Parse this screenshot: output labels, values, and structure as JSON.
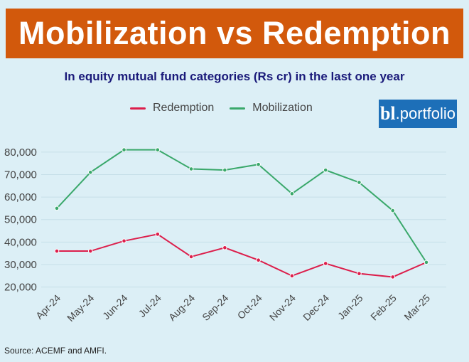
{
  "banner": {
    "title": "Mobilization vs Redemption"
  },
  "subtitle": "In equity mutual fund categories (Rs cr) in the last one year",
  "logo": {
    "bold": "bl",
    "dot": ".",
    "light": "portfolio"
  },
  "source": "Source: ACEMF and AMFI.",
  "colors": {
    "banner": "#d2590c",
    "redemption": "#dc1e4b",
    "mobilization": "#3aa86b",
    "subtitle": "#1a1a7a"
  },
  "chart_data": {
    "type": "line",
    "categories": [
      "Apr-24",
      "May-24",
      "Jun-24",
      "Jul-24",
      "Aug-24",
      "Sep-24",
      "Oct-24",
      "Nov-24",
      "Dec-24",
      "Jan-25",
      "Feb-25",
      "Mar-25"
    ],
    "series": [
      {
        "name": "Redemption",
        "color": "#dc1e4b",
        "values": [
          36000,
          36000,
          40500,
          43500,
          33500,
          37500,
          32000,
          25000,
          30500,
          26000,
          24500,
          31000
        ]
      },
      {
        "name": "Mobilization",
        "color": "#3aa86b",
        "values": [
          55000,
          71000,
          81000,
          81000,
          72500,
          72000,
          74500,
          61500,
          72000,
          66500,
          54000,
          31000
        ]
      }
    ],
    "yticks": [
      "20,000",
      "30,000",
      "40,000",
      "50,000",
      "60,000",
      "70,000",
      "80,000"
    ],
    "ylim": [
      18000,
      85000
    ],
    "legend_position": "top",
    "grid": true
  }
}
